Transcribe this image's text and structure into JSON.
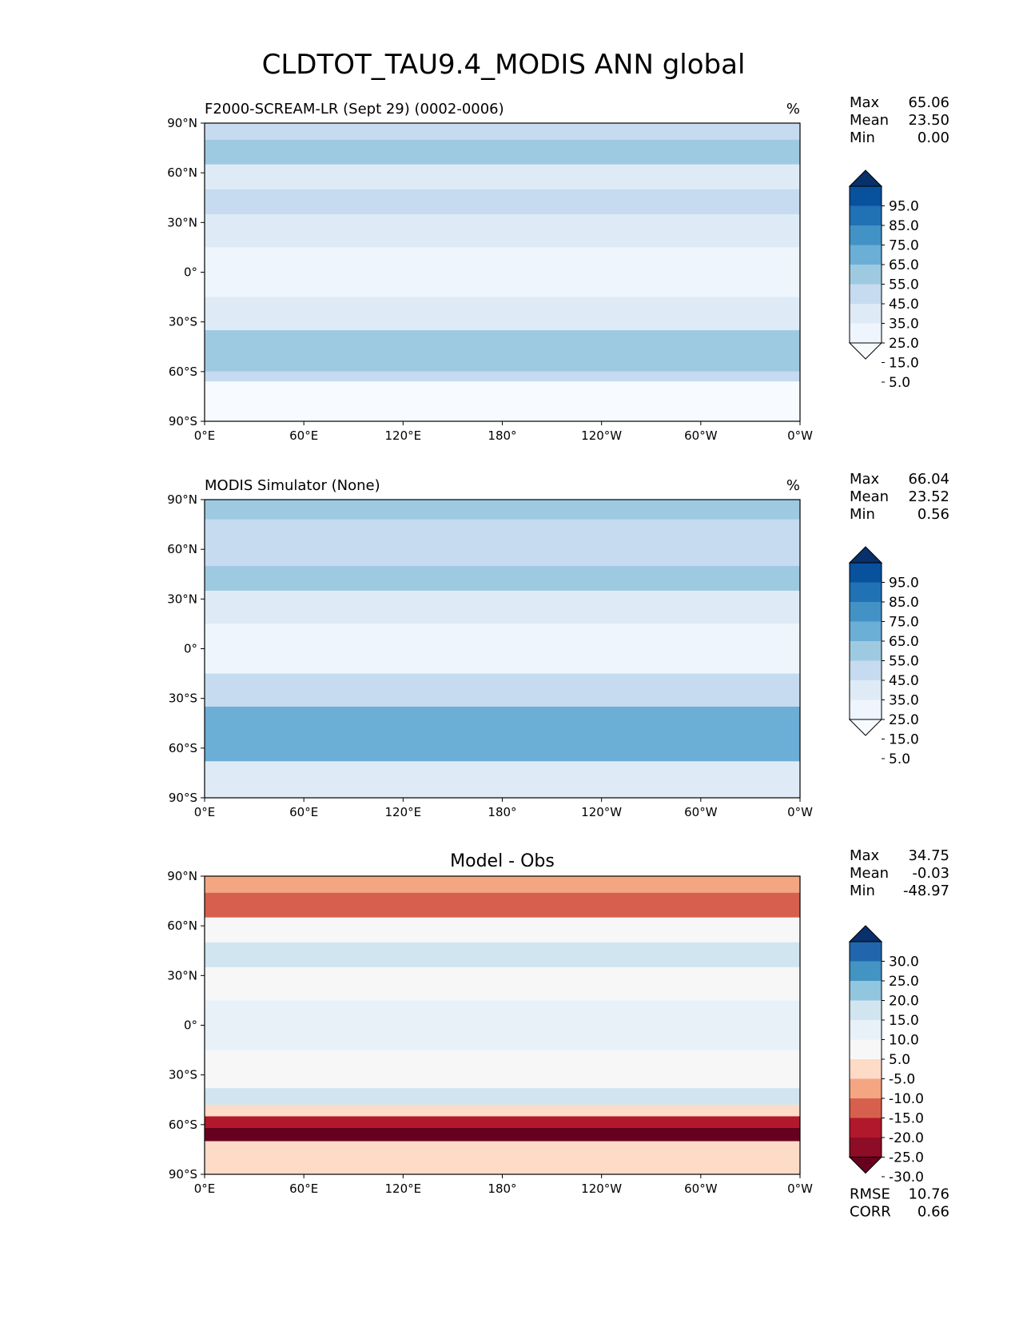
{
  "figure_title": "CLDTOT_TAU9.4_MODIS ANN global",
  "chart_data": [
    {
      "type": "heatmap",
      "title": "F2000-SCREAM-LR (Sept 29) (0002-0006)",
      "units": "%",
      "xlim": [
        0,
        360
      ],
      "ylim": [
        -90,
        90
      ],
      "x_tick_labels": [
        "0°E",
        "60°E",
        "120°E",
        "180°",
        "120°W",
        "60°W",
        "0°W"
      ],
      "y_tick_labels": [
        "90°N",
        "60°N",
        "30°N",
        "0°",
        "30°S",
        "60°S",
        "90°S"
      ],
      "stats": {
        "max_label": "Max",
        "max": "65.06",
        "mean_label": "Mean",
        "mean": "23.50",
        "min_label": "Min",
        "min": "0.00"
      },
      "colorbar": {
        "levels": [
          "95.0",
          "85.0",
          "75.0",
          "65.0",
          "55.0",
          "45.0",
          "35.0",
          "25.0",
          "15.0",
          "5.0"
        ],
        "colors": [
          "#08306b",
          "#08519c",
          "#2171b5",
          "#4292c6",
          "#6baed6",
          "#9ecae1",
          "#c6dbef",
          "#deebf7",
          "#eef5fc",
          "#f7fbff"
        ],
        "extend": "both"
      },
      "zonal_bands": [
        {
          "lat_top": 90,
          "lat_bottom": 80,
          "color": "#c6dbef"
        },
        {
          "lat_top": 80,
          "lat_bottom": 65,
          "color": "#9ecae1"
        },
        {
          "lat_top": 65,
          "lat_bottom": 50,
          "color": "#deebf7"
        },
        {
          "lat_top": 50,
          "lat_bottom": 35,
          "color": "#c6dbef"
        },
        {
          "lat_top": 35,
          "lat_bottom": 15,
          "color": "#deebf7"
        },
        {
          "lat_top": 15,
          "lat_bottom": -15,
          "color": "#eef5fc"
        },
        {
          "lat_top": -15,
          "lat_bottom": -35,
          "color": "#deebf7"
        },
        {
          "lat_top": -35,
          "lat_bottom": -60,
          "color": "#9ecae1"
        },
        {
          "lat_top": -60,
          "lat_bottom": -66,
          "color": "#c6dbef"
        },
        {
          "lat_top": -66,
          "lat_bottom": -90,
          "color": "#f7fbff"
        }
      ]
    },
    {
      "type": "heatmap",
      "title": "MODIS Simulator (None)",
      "units": "%",
      "xlim": [
        0,
        360
      ],
      "ylim": [
        -90,
        90
      ],
      "x_tick_labels": [
        "0°E",
        "60°E",
        "120°E",
        "180°",
        "120°W",
        "60°W",
        "0°W"
      ],
      "y_tick_labels": [
        "90°N",
        "60°N",
        "30°N",
        "0°",
        "30°S",
        "60°S",
        "90°S"
      ],
      "stats": {
        "max_label": "Max",
        "max": "66.04",
        "mean_label": "Mean",
        "mean": "23.52",
        "min_label": "Min",
        "min": "0.56"
      },
      "colorbar": {
        "levels": [
          "95.0",
          "85.0",
          "75.0",
          "65.0",
          "55.0",
          "45.0",
          "35.0",
          "25.0",
          "15.0",
          "5.0"
        ],
        "colors": [
          "#08306b",
          "#08519c",
          "#2171b5",
          "#4292c6",
          "#6baed6",
          "#9ecae1",
          "#c6dbef",
          "#deebf7",
          "#eef5fc",
          "#f7fbff"
        ],
        "extend": "both"
      },
      "zonal_bands": [
        {
          "lat_top": 90,
          "lat_bottom": 78,
          "color": "#9ecae1"
        },
        {
          "lat_top": 78,
          "lat_bottom": 50,
          "color": "#c6dbef"
        },
        {
          "lat_top": 50,
          "lat_bottom": 35,
          "color": "#9ecae1"
        },
        {
          "lat_top": 35,
          "lat_bottom": 15,
          "color": "#deebf7"
        },
        {
          "lat_top": 15,
          "lat_bottom": -15,
          "color": "#eef5fc"
        },
        {
          "lat_top": -15,
          "lat_bottom": -35,
          "color": "#c6dbef"
        },
        {
          "lat_top": -35,
          "lat_bottom": -68,
          "color": "#6baed6"
        },
        {
          "lat_top": -68,
          "lat_bottom": -90,
          "color": "#deebf7"
        }
      ]
    },
    {
      "type": "heatmap",
      "title": "Model - Obs",
      "units": "",
      "xlim": [
        0,
        360
      ],
      "ylim": [
        -90,
        90
      ],
      "x_tick_labels": [
        "0°E",
        "60°E",
        "120°E",
        "180°",
        "120°W",
        "60°W",
        "0°W"
      ],
      "y_tick_labels": [
        "90°N",
        "60°N",
        "30°N",
        "0°",
        "30°S",
        "60°S",
        "90°S"
      ],
      "stats": {
        "max_label": "Max",
        "max": "34.75",
        "mean_label": "Mean",
        "mean": "-0.03",
        "min_label": "Min",
        "min": "-48.97"
      },
      "extra_stats": {
        "rmse_label": "RMSE",
        "rmse": "10.76",
        "corr_label": "CORR",
        "corr": "0.66"
      },
      "colorbar": {
        "levels": [
          "30.0",
          "25.0",
          "20.0",
          "15.0",
          "10.0",
          "5.0",
          "-5.0",
          "-10.0",
          "-15.0",
          "-20.0",
          "-25.0",
          "-30.0"
        ],
        "colors": [
          "#08306b",
          "#2166ac",
          "#4393c3",
          "#92c5de",
          "#d1e5f0",
          "#e8f1f8",
          "#f7f7f7",
          "#fddbc7",
          "#f4a582",
          "#d6604d",
          "#b2182b",
          "#8c0d25",
          "#67001f"
        ],
        "extend": "both"
      },
      "zonal_bands": [
        {
          "lat_top": 90,
          "lat_bottom": 80,
          "color": "#f4a582"
        },
        {
          "lat_top": 80,
          "lat_bottom": 65,
          "color": "#d6604d"
        },
        {
          "lat_top": 65,
          "lat_bottom": 50,
          "color": "#f7f7f7"
        },
        {
          "lat_top": 50,
          "lat_bottom": 35,
          "color": "#d1e5f0"
        },
        {
          "lat_top": 35,
          "lat_bottom": 15,
          "color": "#f7f7f7"
        },
        {
          "lat_top": 15,
          "lat_bottom": -15,
          "color": "#e8f1f8"
        },
        {
          "lat_top": -15,
          "lat_bottom": -38,
          "color": "#f7f7f7"
        },
        {
          "lat_top": -38,
          "lat_bottom": -48,
          "color": "#d1e5f0"
        },
        {
          "lat_top": -48,
          "lat_bottom": -55,
          "color": "#fddbc7"
        },
        {
          "lat_top": -55,
          "lat_bottom": -62,
          "color": "#b2182b"
        },
        {
          "lat_top": -62,
          "lat_bottom": -70,
          "color": "#67001f"
        },
        {
          "lat_top": -70,
          "lat_bottom": -90,
          "color": "#fddbc7"
        }
      ]
    }
  ]
}
